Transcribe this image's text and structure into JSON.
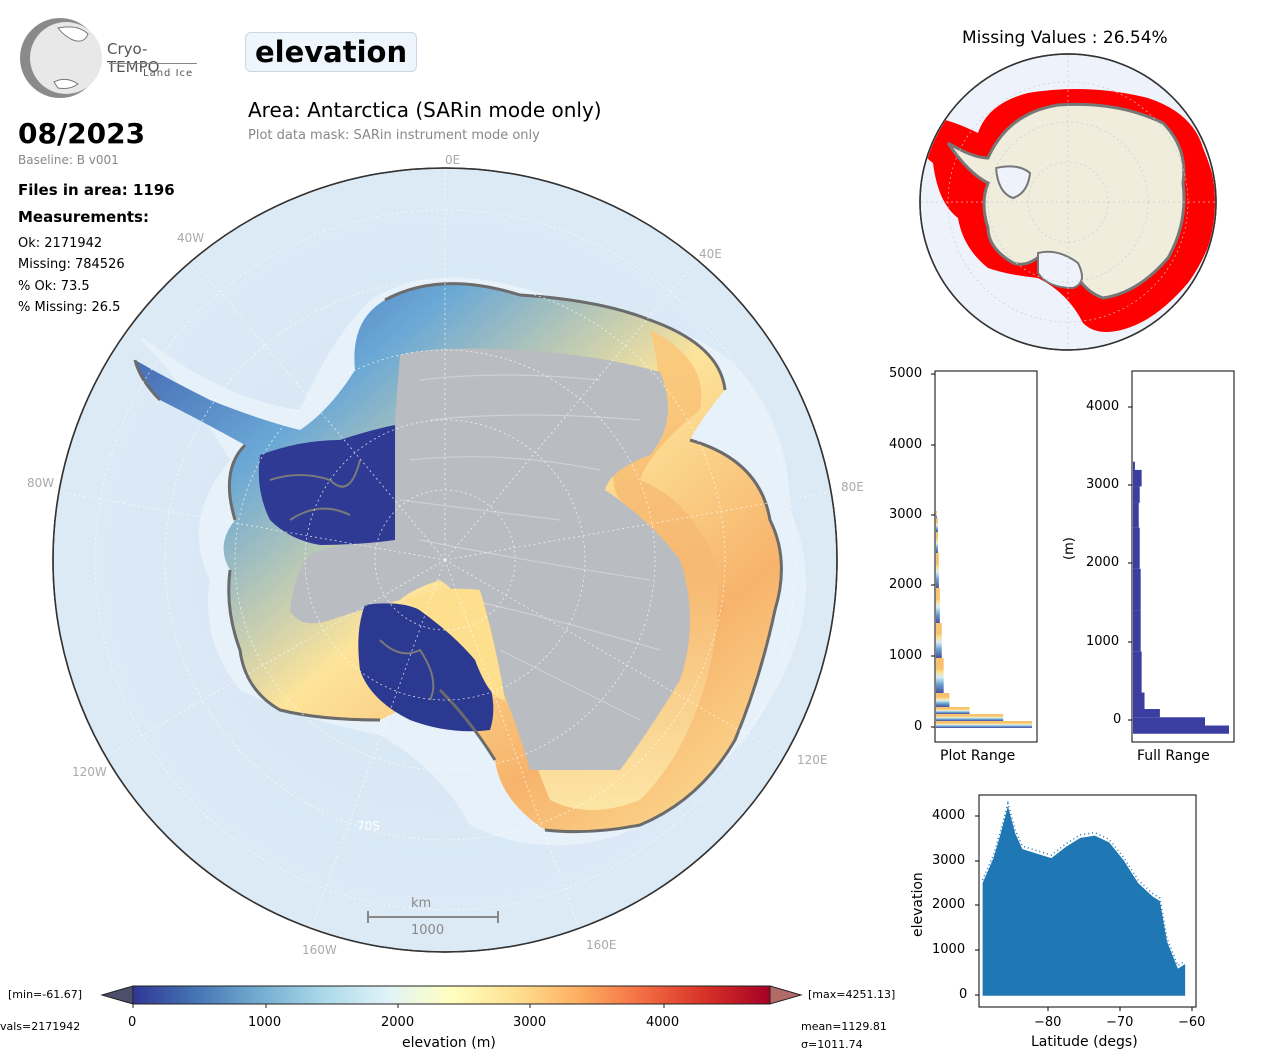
{
  "logo": {
    "name": "Cryo-TEMPO",
    "subtitle": "Land Ice"
  },
  "parameter": "elevation",
  "area_title": "Area: Antarctica (SARin mode only)",
  "mask_text": "Plot data mask: SARin instrument mode only",
  "date": "08/2023",
  "baseline": "Baseline: B v001",
  "files_in_area": "Files in area: 1196",
  "measurements_heading": "Measurements:",
  "stats": {
    "ok": "Ok: 2171942",
    "missing": "Missing: 784526",
    "pct_ok": "% Ok: 73.5",
    "pct_missing": "% Missing: 26.5"
  },
  "map": {
    "longitude_labels": {
      "lon_0e": "0E",
      "lon_40w": "40W",
      "lon_40e": "40E",
      "lon_80w": "80W",
      "lon_80e": "80E",
      "lon_120w": "120W",
      "lon_120e": "120E",
      "lon_160w": "160W",
      "lon_160e": "160E",
      "lat_70s": "70S"
    },
    "scalebar_unit": "km",
    "scalebar_value": "1000"
  },
  "colorbar": {
    "label": "elevation (m)",
    "ticks": [
      "0",
      "1000",
      "2000",
      "3000",
      "4000"
    ],
    "min_text": "[min=-61.67]",
    "max_text": "[max=4251.13]",
    "nvals_text": "vals=2171942",
    "mean_text": "mean=1129.81",
    "sigma_text": "σ=1011.74",
    "colors": [
      "#313695",
      "#4575b4",
      "#74add1",
      "#abd9e9",
      "#e0f3f8",
      "#ffffbf",
      "#fee090",
      "#fdae61",
      "#f46d43",
      "#d73027",
      "#a50026"
    ]
  },
  "missing_map": {
    "title": "Missing Values : 26.54%",
    "missing_color": "#ff0000",
    "land_color": "#f0eddc",
    "ocean_color": "#eef3fb"
  },
  "hist_plot_range": {
    "xlabel": "Plot Range",
    "yticks": [
      "0",
      "1000",
      "2000",
      "3000",
      "4000",
      "5000"
    ]
  },
  "hist_full_range": {
    "xlabel": "Full Range",
    "ylabel": "(m)",
    "yticks": [
      "0",
      "1000",
      "2000",
      "3000",
      "4000"
    ]
  },
  "scatter": {
    "xlabel": "Latitude (degs)",
    "ylabel": "elevation",
    "xticks": [
      "−80",
      "−70",
      "−60"
    ],
    "yticks": [
      "0",
      "1000",
      "2000",
      "3000",
      "4000"
    ],
    "color": "#1f77b4"
  },
  "chart_data": [
    {
      "type": "bar",
      "orientation": "horizontal",
      "title": "",
      "xlabel": "Plot Range",
      "ylabel": "",
      "ylim": [
        -200,
        5100
      ],
      "bins": [
        0,
        100,
        200,
        300,
        500,
        1000,
        1500,
        2000,
        2500,
        2800,
        3000
      ],
      "relative_counts": [
        1.0,
        0.7,
        0.35,
        0.14,
        0.08,
        0.06,
        0.04,
        0.03,
        0.02,
        0.02,
        0.01
      ]
    },
    {
      "type": "bar",
      "orientation": "horizontal",
      "title": "",
      "xlabel": "Full Range",
      "ylabel": "(m)",
      "ylim": [
        -100,
        4400
      ],
      "bins": [
        0,
        100,
        200,
        300,
        500,
        1000,
        1500,
        2000,
        2500,
        2800,
        3000,
        3200
      ],
      "relative_counts": [
        1.0,
        0.75,
        0.28,
        0.12,
        0.09,
        0.08,
        0.08,
        0.07,
        0.06,
        0.07,
        0.09,
        0.02
      ]
    },
    {
      "type": "scatter",
      "title": "",
      "xlabel": "Latitude (degs)",
      "ylabel": "elevation",
      "xlim": [
        -89,
        -59
      ],
      "ylim": [
        -250,
        4450
      ],
      "upper_envelope": [
        [
          -88.5,
          2500
        ],
        [
          -87,
          3050
        ],
        [
          -86,
          3600
        ],
        [
          -85,
          4200
        ],
        [
          -84,
          3600
        ],
        [
          -83,
          3250
        ],
        [
          -81,
          3150
        ],
        [
          -79,
          3050
        ],
        [
          -77,
          3300
        ],
        [
          -75,
          3500
        ],
        [
          -73,
          3550
        ],
        [
          -71,
          3400
        ],
        [
          -69,
          3000
        ],
        [
          -67,
          2500
        ],
        [
          -65,
          2200
        ],
        [
          -64,
          2100
        ],
        [
          -63,
          1200
        ],
        [
          -61.5,
          600
        ],
        [
          -60.5,
          700
        ]
      ],
      "lower_bound": 0
    }
  ]
}
